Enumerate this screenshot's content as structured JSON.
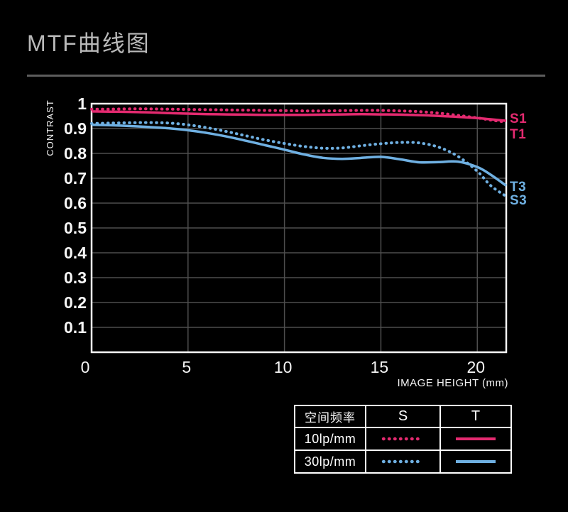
{
  "page": {
    "title": "MTF曲线图"
  },
  "chart_data": {
    "type": "line",
    "title": "MTF曲线图",
    "xlabel": "IMAGE HEIGHT (mm)",
    "ylabel": "CONTRAST",
    "xlim": [
      0,
      21.5
    ],
    "ylim": [
      0,
      1
    ],
    "grid": true,
    "legend_position": "bottom-right-table",
    "x_ticks": [
      0,
      5,
      10,
      15,
      20
    ],
    "y_ticks": [
      1,
      0.9,
      0.8,
      0.7,
      0.6,
      0.5,
      0.4,
      0.3,
      0.2,
      0.1
    ],
    "y_tick_labels": [
      "1",
      "0.9",
      "0.8",
      "0.7",
      "0.6",
      "0.5",
      "0.4",
      "0.3",
      "0.2",
      "0.1"
    ],
    "x": [
      0,
      1,
      2,
      3,
      4,
      5,
      6,
      7,
      8,
      9,
      10,
      11,
      12,
      13,
      14,
      15,
      16,
      17,
      18,
      19,
      20,
      20.7,
      21.5
    ],
    "series": [
      {
        "name": "T1",
        "frequency": "10lp/mm",
        "orientation": "T",
        "style": "solid",
        "color": "#e42a70",
        "values": [
          0.969,
          0.968,
          0.967,
          0.965,
          0.962,
          0.96,
          0.958,
          0.957,
          0.956,
          0.955,
          0.955,
          0.955,
          0.956,
          0.957,
          0.958,
          0.957,
          0.956,
          0.954,
          0.951,
          0.947,
          0.942,
          0.937,
          0.931
        ]
      },
      {
        "name": "S1",
        "frequency": "10lp/mm",
        "orientation": "S",
        "style": "dotted",
        "color": "#e42a70",
        "values": [
          0.978,
          0.978,
          0.979,
          0.979,
          0.978,
          0.977,
          0.976,
          0.975,
          0.974,
          0.973,
          0.972,
          0.971,
          0.971,
          0.972,
          0.973,
          0.973,
          0.971,
          0.968,
          0.962,
          0.953,
          0.943,
          0.934,
          0.926
        ]
      },
      {
        "name": "T3",
        "frequency": "30lp/mm",
        "orientation": "T",
        "style": "solid",
        "color": "#6fb0e2",
        "values": [
          0.915,
          0.913,
          0.91,
          0.906,
          0.901,
          0.893,
          0.882,
          0.868,
          0.851,
          0.833,
          0.815,
          0.796,
          0.782,
          0.778,
          0.782,
          0.786,
          0.776,
          0.764,
          0.765,
          0.767,
          0.745,
          0.714,
          0.67
        ]
      },
      {
        "name": "S3",
        "frequency": "30lp/mm",
        "orientation": "S",
        "style": "dotted",
        "color": "#6fb0e2",
        "values": [
          0.92,
          0.922,
          0.923,
          0.924,
          0.922,
          0.915,
          0.903,
          0.888,
          0.871,
          0.854,
          0.84,
          0.828,
          0.821,
          0.822,
          0.831,
          0.839,
          0.844,
          0.842,
          0.825,
          0.788,
          0.728,
          0.67,
          0.627
        ]
      }
    ],
    "end_labels": [
      {
        "text": "S1",
        "color": "#e42a70",
        "v": 0.937
      },
      {
        "text": "T1",
        "color": "#e42a70",
        "v": 0.874
      },
      {
        "text": "T3",
        "color": "#6fb0e2",
        "v": 0.662
      },
      {
        "text": "S3",
        "color": "#6fb0e2",
        "v": 0.609
      }
    ]
  },
  "legend_table": {
    "headers": [
      "空间频率",
      "S",
      "T"
    ],
    "rows": [
      {
        "label": "10lp/mm",
        "color": "#e42a70"
      },
      {
        "label": "30lp/mm",
        "color": "#6fb0e2"
      }
    ]
  },
  "colors": {
    "background": "#000000",
    "pink": "#e42a70",
    "blue": "#6fb0e2",
    "grid": "#4e4e4e",
    "plot_border": "#f4f4f4",
    "title_text": "#b9b9b9",
    "divider": "#5d5d5d"
  }
}
